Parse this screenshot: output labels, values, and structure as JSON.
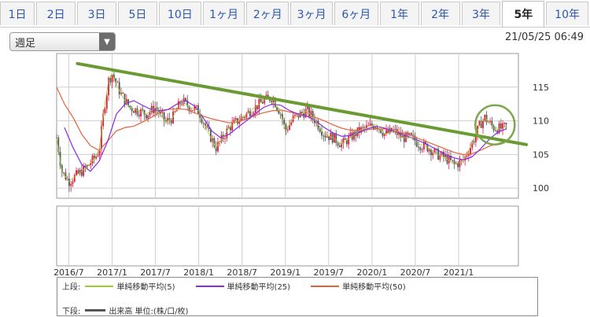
{
  "tabs": [
    {
      "label": "1日"
    },
    {
      "label": "2日"
    },
    {
      "label": "3日"
    },
    {
      "label": "5日"
    },
    {
      "label": "10日"
    },
    {
      "label": "1ヶ月"
    },
    {
      "label": "2ヶ月"
    },
    {
      "label": "3ヶ月"
    },
    {
      "label": "6ヶ月"
    },
    {
      "label": "1年"
    },
    {
      "label": "2年"
    },
    {
      "label": "3年"
    },
    {
      "label": "5年",
      "active": true
    },
    {
      "label": "10年"
    }
  ],
  "period_select": {
    "value": "週足"
  },
  "timestamp": "21/05/25 06:49",
  "legend": {
    "upper_label": "上段:",
    "ma5": "単純移動平均(5)",
    "ma25": "単純移動平均(25)",
    "ma50": "単純移動平均(50)",
    "lower_label": "下段:",
    "volume": "出来高 単位:(株/口/枚)"
  },
  "colors": {
    "up_candle": "#e0193b",
    "down_candle": "#555555",
    "ma5": "#9acd32",
    "ma25": "#8a2be2",
    "ma50": "#e2643c",
    "trendline": "#6a9a32",
    "highlight_circle": "#7aa84a",
    "grid": "#cfcfcf"
  },
  "chart_data": {
    "type": "candlestick",
    "title": "",
    "ylim": [
      98.5,
      120
    ],
    "y_ticks": [
      100,
      105,
      110,
      115
    ],
    "x_ticks": [
      {
        "label": "2016/7",
        "x": 2016.5
      },
      {
        "label": "2017/1",
        "x": 2017.0
      },
      {
        "label": "2017/7",
        "x": 2017.5
      },
      {
        "label": "2018/1",
        "x": 2018.0
      },
      {
        "label": "2018/7",
        "x": 2018.5
      },
      {
        "label": "2019/1",
        "x": 2019.0
      },
      {
        "label": "2019/7",
        "x": 2019.5
      },
      {
        "label": "2020/1",
        "x": 2020.0
      },
      {
        "label": "2020/7",
        "x": 2020.5
      },
      {
        "label": "2021/1",
        "x": 2021.0
      }
    ],
    "xlim": [
      2016.36,
      2021.69
    ],
    "grid": true,
    "price_close": [
      [
        2016.36,
        107.5
      ],
      [
        2016.42,
        102.5
      ],
      [
        2016.5,
        101.0
      ],
      [
        2016.6,
        102.0
      ],
      [
        2016.7,
        103.0
      ],
      [
        2016.8,
        104.5
      ],
      [
        2016.85,
        105.5
      ],
      [
        2016.9,
        111.0
      ],
      [
        2016.96,
        116.0
      ],
      [
        2017.0,
        117.0
      ],
      [
        2017.1,
        114.0
      ],
      [
        2017.2,
        112.0
      ],
      [
        2017.3,
        111.5
      ],
      [
        2017.4,
        111.0
      ],
      [
        2017.5,
        112.0
      ],
      [
        2017.55,
        111.0
      ],
      [
        2017.62,
        109.8
      ],
      [
        2017.7,
        110.5
      ],
      [
        2017.8,
        113.0
      ],
      [
        2017.9,
        112.0
      ],
      [
        2018.0,
        111.5
      ],
      [
        2018.1,
        108.5
      ],
      [
        2018.2,
        106.0
      ],
      [
        2018.28,
        107.5
      ],
      [
        2018.35,
        109.0
      ],
      [
        2018.45,
        110.0
      ],
      [
        2018.55,
        111.0
      ],
      [
        2018.65,
        112.0
      ],
      [
        2018.75,
        113.0
      ],
      [
        2018.85,
        113.5
      ],
      [
        2018.95,
        111.0
      ],
      [
        2019.0,
        108.5
      ],
      [
        2019.1,
        110.5
      ],
      [
        2019.25,
        111.5
      ],
      [
        2019.35,
        110.0
      ],
      [
        2019.45,
        108.0
      ],
      [
        2019.55,
        107.5
      ],
      [
        2019.65,
        106.5
      ],
      [
        2019.75,
        107.5
      ],
      [
        2019.85,
        108.5
      ],
      [
        2019.95,
        109.0
      ],
      [
        2020.05,
        109.5
      ],
      [
        2020.15,
        108.0
      ],
      [
        2020.25,
        108.5
      ],
      [
        2020.35,
        107.5
      ],
      [
        2020.45,
        107.5
      ],
      [
        2020.55,
        106.5
      ],
      [
        2020.65,
        106.0
      ],
      [
        2020.75,
        105.0
      ],
      [
        2020.85,
        104.5
      ],
      [
        2020.95,
        103.5
      ],
      [
        2021.05,
        104.0
      ],
      [
        2021.15,
        106.5
      ],
      [
        2021.25,
        109.5
      ],
      [
        2021.3,
        110.5
      ],
      [
        2021.4,
        109.0
      ],
      [
        2021.5,
        108.8
      ],
      [
        2021.55,
        109.2
      ]
    ],
    "ma25": [
      [
        2016.45,
        109.0
      ],
      [
        2016.55,
        106.0
      ],
      [
        2016.65,
        103.5
      ],
      [
        2016.75,
        102.5
      ],
      [
        2016.85,
        104.0
      ],
      [
        2016.95,
        107.0
      ],
      [
        2017.05,
        111.0
      ],
      [
        2017.15,
        112.5
      ],
      [
        2017.25,
        113.0
      ],
      [
        2017.35,
        112.3
      ],
      [
        2017.45,
        111.7
      ],
      [
        2017.55,
        111.5
      ],
      [
        2017.65,
        111.7
      ],
      [
        2017.75,
        112.5
      ],
      [
        2017.85,
        113.0
      ],
      [
        2017.95,
        112.2
      ],
      [
        2018.05,
        110.5
      ],
      [
        2018.15,
        108.5
      ],
      [
        2018.25,
        107.5
      ],
      [
        2018.35,
        108.0
      ],
      [
        2018.45,
        109.0
      ],
      [
        2018.55,
        110.0
      ],
      [
        2018.65,
        111.0
      ],
      [
        2018.75,
        112.0
      ],
      [
        2018.85,
        112.5
      ],
      [
        2018.95,
        112.3
      ],
      [
        2019.05,
        111.5
      ],
      [
        2019.15,
        111.0
      ],
      [
        2019.25,
        110.7
      ],
      [
        2019.35,
        110.0
      ],
      [
        2019.45,
        109.0
      ],
      [
        2019.55,
        108.2
      ],
      [
        2019.65,
        107.7
      ],
      [
        2019.75,
        107.8
      ],
      [
        2019.85,
        108.3
      ],
      [
        2019.95,
        108.8
      ],
      [
        2020.05,
        109.2
      ],
      [
        2020.15,
        108.9
      ],
      [
        2020.25,
        108.4
      ],
      [
        2020.35,
        108.0
      ],
      [
        2020.45,
        107.5
      ],
      [
        2020.55,
        107.0
      ],
      [
        2020.65,
        106.4
      ],
      [
        2020.75,
        105.7
      ],
      [
        2020.85,
        105.0
      ],
      [
        2020.95,
        104.5
      ],
      [
        2021.05,
        104.2
      ],
      [
        2021.15,
        104.6
      ],
      [
        2021.25,
        105.8
      ],
      [
        2021.35,
        107.2
      ],
      [
        2021.45,
        108.3
      ],
      [
        2021.55,
        108.8
      ]
    ],
    "ma50": [
      [
        2016.36,
        115.0
      ],
      [
        2016.45,
        112.5
      ],
      [
        2016.55,
        110.5
      ],
      [
        2016.65,
        108.0
      ],
      [
        2016.75,
        106.3
      ],
      [
        2016.85,
        105.6
      ],
      [
        2016.95,
        107.0
      ],
      [
        2017.05,
        108.5
      ],
      [
        2017.15,
        109.0
      ],
      [
        2017.25,
        109.2
      ],
      [
        2017.35,
        109.8
      ],
      [
        2017.45,
        110.5
      ],
      [
        2017.55,
        111.3
      ],
      [
        2017.65,
        111.7
      ],
      [
        2017.75,
        111.8
      ],
      [
        2017.85,
        111.7
      ],
      [
        2017.95,
        111.2
      ],
      [
        2018.05,
        110.7
      ],
      [
        2018.15,
        110.3
      ],
      [
        2018.25,
        110.0
      ],
      [
        2018.35,
        109.7
      ],
      [
        2018.45,
        109.8
      ],
      [
        2018.55,
        110.3
      ],
      [
        2018.65,
        110.8
      ],
      [
        2018.75,
        111.2
      ],
      [
        2018.85,
        111.5
      ],
      [
        2018.95,
        111.6
      ],
      [
        2019.05,
        111.3
      ],
      [
        2019.15,
        111.0
      ],
      [
        2019.25,
        110.7
      ],
      [
        2019.35,
        110.5
      ],
      [
        2019.45,
        110.0
      ],
      [
        2019.55,
        109.4
      ],
      [
        2019.65,
        108.9
      ],
      [
        2019.75,
        108.6
      ],
      [
        2019.85,
        108.6
      ],
      [
        2019.95,
        108.7
      ],
      [
        2020.05,
        108.8
      ],
      [
        2020.15,
        108.8
      ],
      [
        2020.25,
        108.5
      ],
      [
        2020.35,
        108.2
      ],
      [
        2020.45,
        107.8
      ],
      [
        2020.55,
        107.3
      ],
      [
        2020.65,
        106.8
      ],
      [
        2020.75,
        106.3
      ],
      [
        2020.85,
        105.8
      ],
      [
        2020.95,
        105.3
      ],
      [
        2021.05,
        105.0
      ],
      [
        2021.15,
        105.1
      ],
      [
        2021.25,
        105.6
      ],
      [
        2021.35,
        106.2
      ],
      [
        2021.45,
        106.6
      ],
      [
        2021.55,
        107.0
      ]
    ],
    "trendline": [
      [
        2016.6,
        118.5
      ],
      [
        2021.69,
        106.7
      ]
    ],
    "highlight": {
      "x": 2021.42,
      "y": 109.4
    }
  }
}
